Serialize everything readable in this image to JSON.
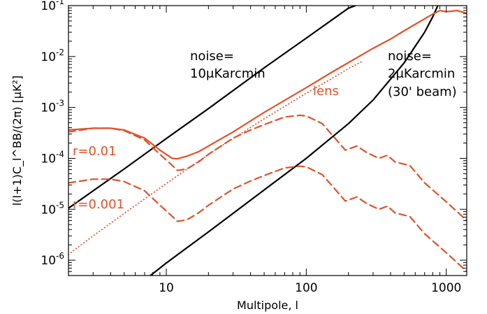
{
  "chart_data": {
    "type": "line",
    "title": "",
    "xlabel": "Multipole, l",
    "ylabel": "l(l+1)C_l^BB/(2π) [μK²]",
    "xscale": "log",
    "yscale": "log",
    "xlim": [
      2,
      1400
    ],
    "ylim": [
      5e-07,
      0.1
    ],
    "grid": false,
    "legend": "none",
    "x_ticks": [
      {
        "value": 10,
        "label": "10"
      },
      {
        "value": 100,
        "label": "100"
      },
      {
        "value": 1000,
        "label": "1000"
      }
    ],
    "y_ticks": [
      {
        "value": 1e-06,
        "base": "10",
        "exp": "-6"
      },
      {
        "value": 1e-05,
        "base": "10",
        "exp": "-5"
      },
      {
        "value": 0.0001,
        "base": "10",
        "exp": "-4"
      },
      {
        "value": 0.001,
        "base": "10",
        "exp": "-3"
      },
      {
        "value": 0.01,
        "base": "10",
        "exp": "-2"
      },
      {
        "value": 0.1,
        "base": "10",
        "exp": "-1"
      }
    ],
    "annotations": {
      "noise10": [
        "noise=",
        "10μKarcmin"
      ],
      "noise2": [
        "noise=",
        "2μKarcmin",
        "(30' beam)"
      ],
      "lens": "lens",
      "r001": "r=0.01",
      "r0001": "r=0.001"
    },
    "series": [
      {
        "key": "noise10",
        "color": "#000000",
        "style": "solid",
        "x": [
          2,
          3,
          5,
          10,
          20,
          50,
          100,
          200,
          225
        ],
        "y": [
          1.05e-05,
          2.3e-05,
          6.2e-05,
          0.000245,
          0.00095,
          0.006,
          0.023,
          0.089,
          0.1
        ]
      },
      {
        "key": "noise2",
        "color": "#000000",
        "style": "solid",
        "x": [
          7.7,
          10,
          20,
          50,
          100,
          200,
          300,
          500,
          700,
          800,
          870
        ],
        "y": [
          5e-07,
          8.8e-07,
          3.6e-06,
          2.4e-05,
          0.0001,
          0.00048,
          0.0014,
          0.0075,
          0.03,
          0.06,
          0.1
        ]
      },
      {
        "key": "lens",
        "color": "#e0522b",
        "style": "dotted",
        "x": [
          2,
          3,
          5,
          10,
          20,
          50,
          100,
          150,
          200,
          250
        ],
        "y": [
          1.3e-06,
          3e-06,
          8.3e-06,
          3.2e-05,
          0.00012,
          0.0006,
          0.0019,
          0.0036,
          0.0058,
          0.008
        ]
      },
      {
        "key": "total_r001",
        "color": "#e0522b",
        "style": "solid",
        "x": [
          2,
          3,
          4,
          5,
          7,
          9,
          11,
          12,
          14,
          17,
          20,
          30,
          50,
          100,
          150,
          200,
          300,
          400,
          500,
          700,
          800,
          900,
          1000,
          1200,
          1400
        ],
        "y": [
          0.00036,
          0.00039,
          0.00039,
          0.00036,
          0.00025,
          0.000145,
          0.0001,
          9.8e-05,
          0.00011,
          0.000135,
          0.000175,
          0.00033,
          0.0008,
          0.00245,
          0.0048,
          0.0076,
          0.0145,
          0.022,
          0.032,
          0.055,
          0.068,
          0.08,
          0.076,
          0.08,
          0.07
        ]
      },
      {
        "key": "r001",
        "color": "#e0522b",
        "style": "dashed",
        "x": [
          2,
          3,
          4,
          5,
          7,
          9,
          11,
          12,
          14,
          17,
          20,
          30,
          40,
          50,
          70,
          90,
          100,
          130,
          160,
          190,
          230,
          270,
          330,
          380,
          430,
          550,
          700,
          1000,
          1400
        ],
        "y": [
          0.00033,
          0.00039,
          0.00039,
          0.00035,
          0.00023,
          0.00012,
          7.3e-05,
          5.8e-05,
          6.2e-05,
          8.5e-05,
          0.00012,
          0.00025,
          0.00036,
          0.00046,
          0.00065,
          0.0007,
          0.00068,
          0.00048,
          0.00025,
          0.000145,
          0.000175,
          0.00013,
          0.0001,
          0.000115,
          8.5e-05,
          7.2e-05,
          3.3e-05,
          1.4e-05,
          6e-06
        ]
      },
      {
        "key": "r0001",
        "color": "#e0522b",
        "style": "dashed",
        "x": [
          2,
          3,
          4,
          5,
          7,
          9,
          11,
          12,
          14,
          17,
          20,
          30,
          40,
          50,
          70,
          90,
          100,
          130,
          160,
          190,
          230,
          270,
          330,
          380,
          430,
          550,
          700,
          1000,
          1400
        ],
        "y": [
          3.3e-05,
          3.9e-05,
          3.9e-05,
          3.5e-05,
          2.3e-05,
          1.2e-05,
          7.3e-06,
          5.8e-06,
          6.2e-06,
          8.5e-06,
          1.2e-05,
          2.5e-05,
          3.6e-05,
          4.6e-05,
          6.5e-05,
          7e-05,
          6.8e-05,
          4.8e-05,
          2.5e-05,
          1.45e-05,
          1.75e-05,
          1.3e-05,
          1e-05,
          1.15e-05,
          8.5e-06,
          7.2e-06,
          3.3e-06,
          1.4e-06,
          6e-07
        ]
      }
    ]
  }
}
